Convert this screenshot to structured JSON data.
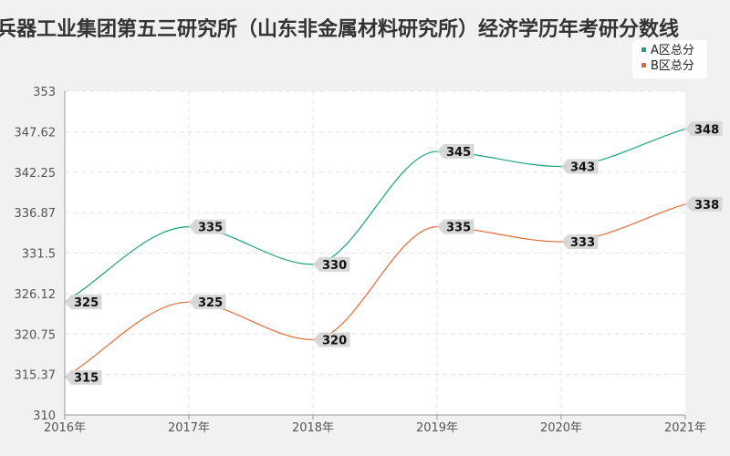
{
  "chart_data": {
    "type": "line",
    "title": "兵器工业集团第五三研究所（山东非金属材料研究所）经济学历年考研分数线",
    "categories": [
      "2016年",
      "2017年",
      "2018年",
      "2019年",
      "2020年",
      "2021年"
    ],
    "series": [
      {
        "name": "A区总分",
        "values": [
          325,
          335,
          330,
          345,
          343,
          348
        ],
        "color": "#1fa37c"
      },
      {
        "name": "B区总分",
        "values": [
          315,
          325,
          320,
          335,
          333,
          338
        ],
        "color": "#e06b38"
      }
    ],
    "y_ticks": [
      "310",
      "315.37",
      "320.75",
      "326.12",
      "331.5",
      "336.87",
      "342.25",
      "347.62",
      "353"
    ],
    "ylim": [
      310,
      353
    ],
    "grid": true,
    "legend_position": "top-right",
    "smooth": true
  }
}
